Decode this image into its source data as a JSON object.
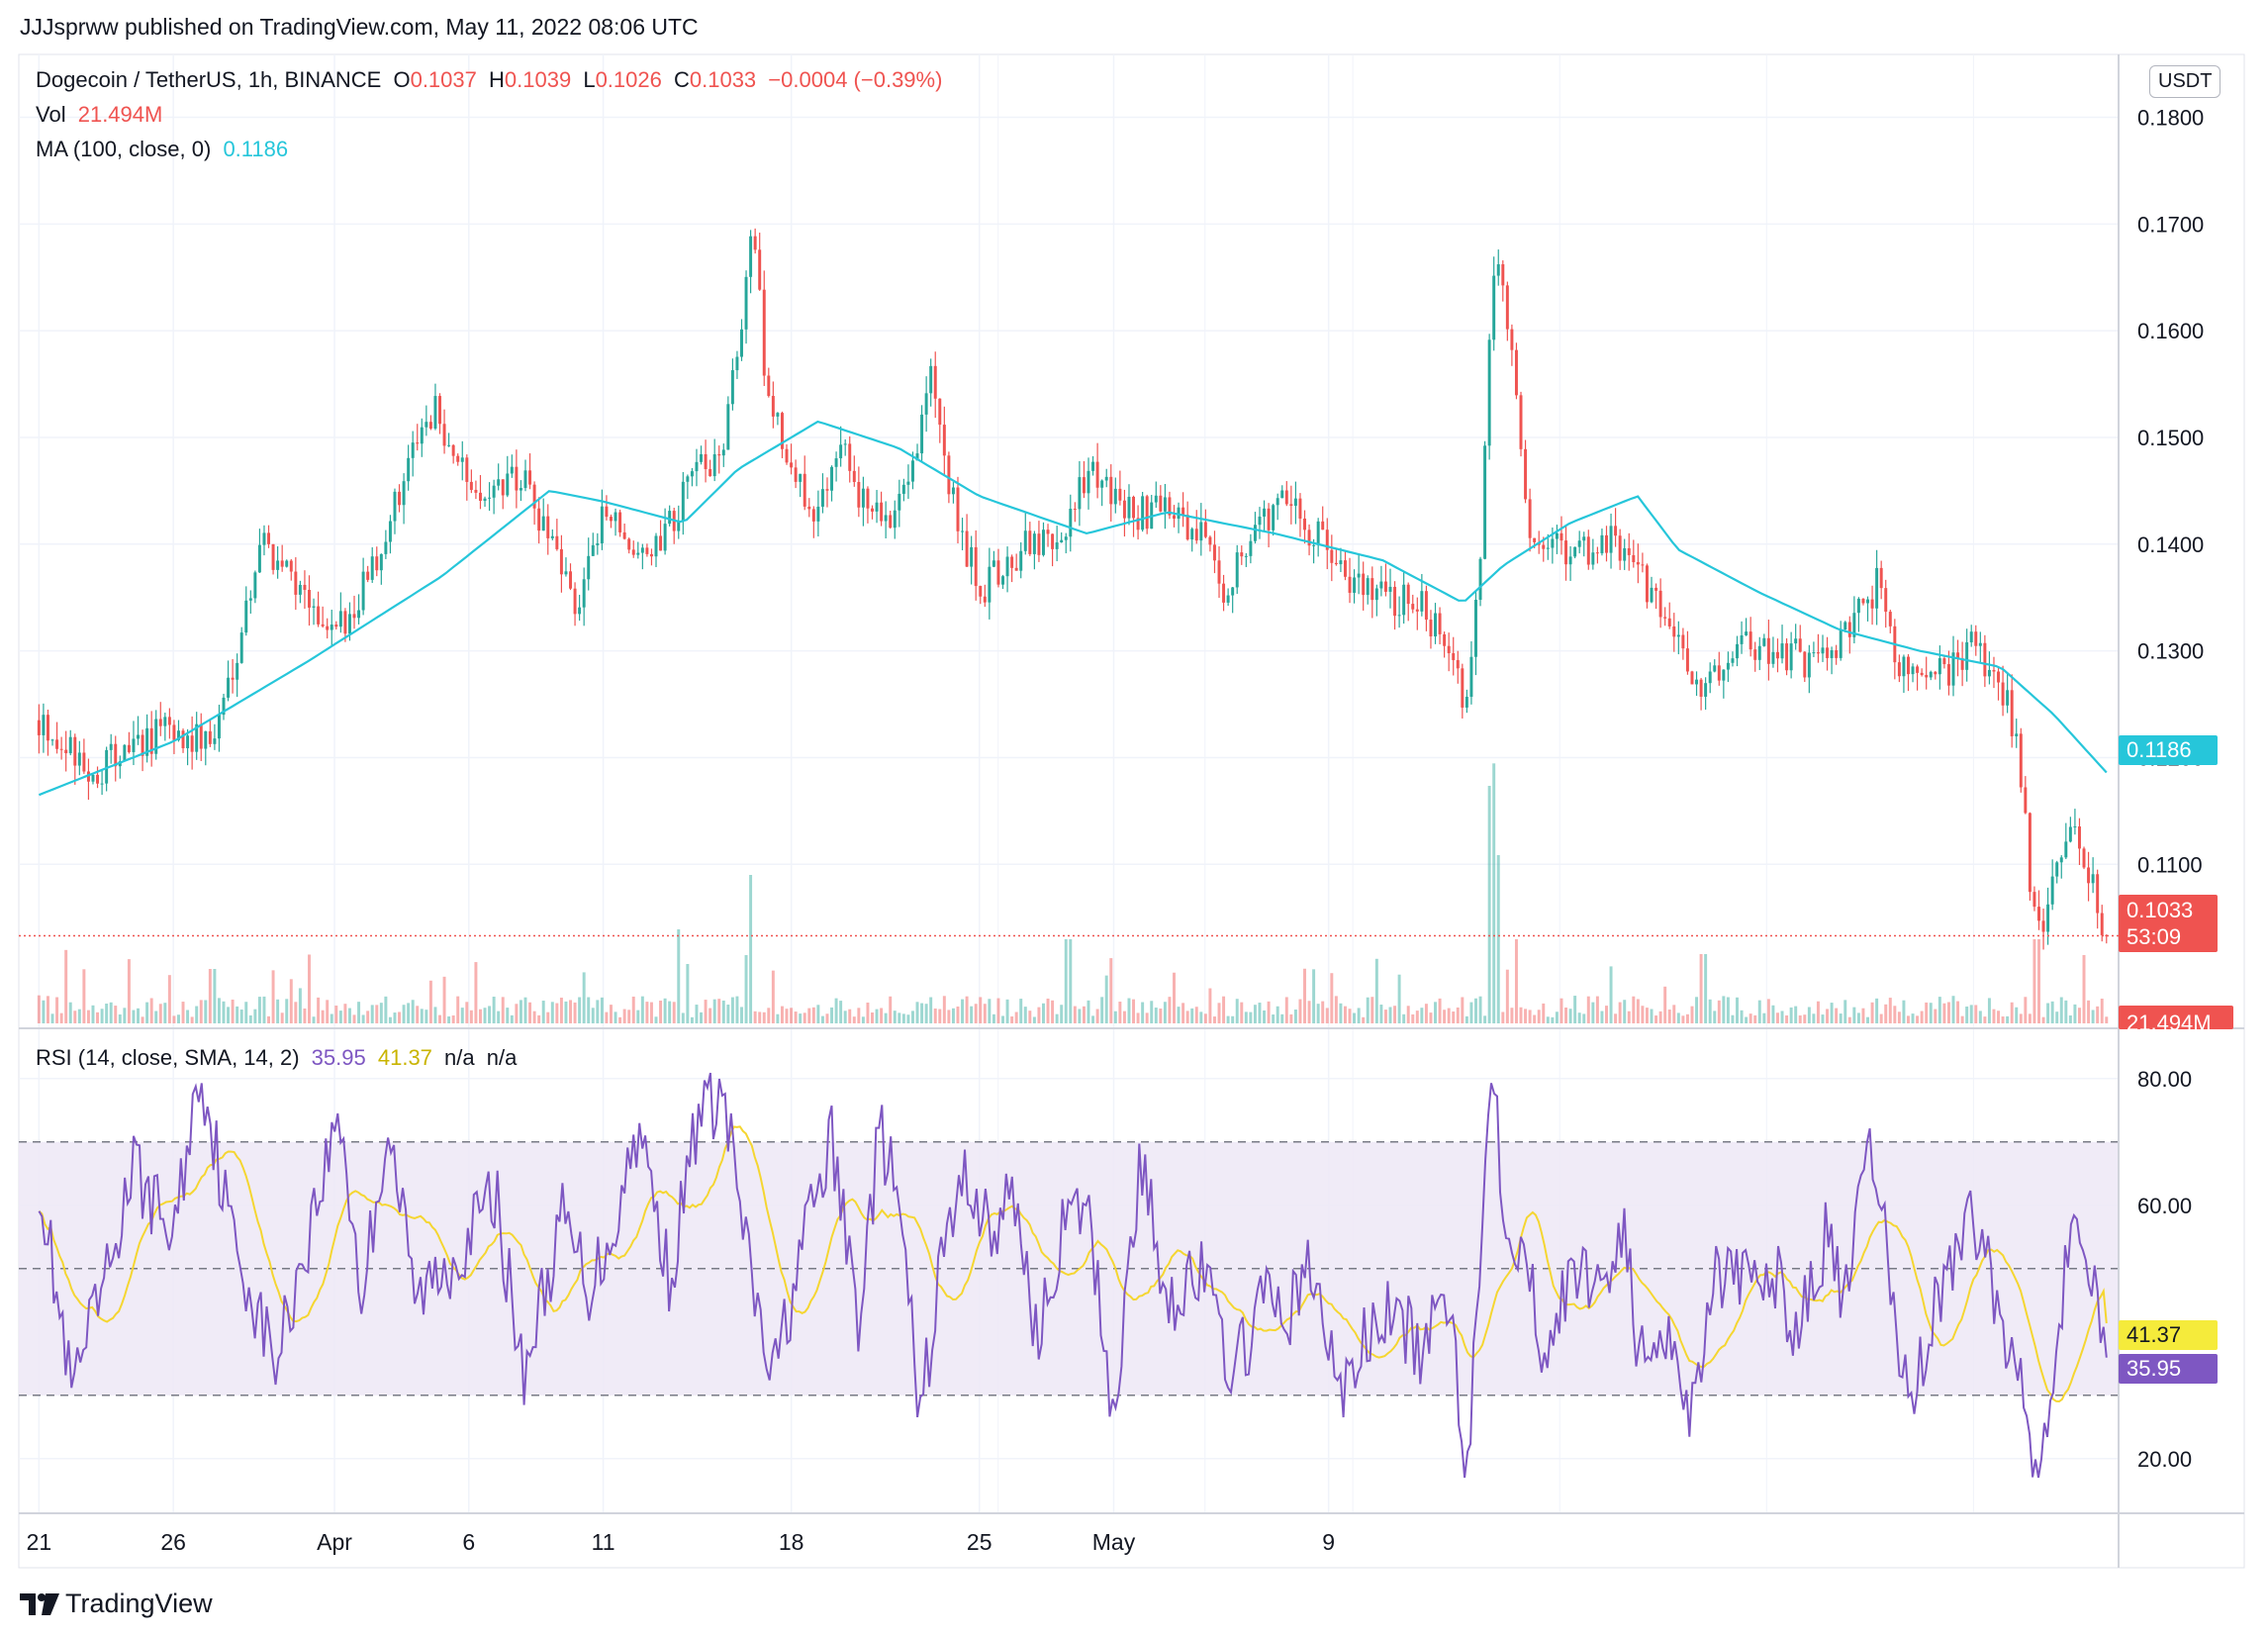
{
  "publisher": "JJJsprww published on TradingView.com, May 11, 2022 08:06 UTC",
  "legend": {
    "symbol": "Dogecoin / TetherUS, 1h, BINANCE",
    "o_label": "O",
    "o_val": "0.1037",
    "h_label": "H",
    "h_val": "0.1039",
    "l_label": "L",
    "l_val": "0.1026",
    "c_label": "C",
    "c_val": "0.1033",
    "change": "−0.0004 (−0.39%)",
    "vol_label": "Vol",
    "vol_val": "21.494M",
    "ma_label": "MA (100, close, 0)",
    "ma_val": "0.1186",
    "rsi_label": "RSI (14, close, SMA, 14, 2)",
    "rsi_val": "35.95",
    "rsi_ma_val": "41.37",
    "rsi_na1": "n/a",
    "rsi_na2": "n/a"
  },
  "currency_button": "USDT",
  "tags": {
    "ma": "0.1186",
    "price": "0.1033",
    "countdown": "53:09",
    "volume": "21.494M",
    "rsi_ma": "41.37",
    "rsi": "35.95"
  },
  "branding": "TradingView",
  "colors": {
    "up": "#26a69a",
    "down": "#ef5350",
    "ma": "#26c6da",
    "rsi": "#7e57c2",
    "rsi_ma": "#f5d631",
    "rsi_band": "#ede7f6",
    "grid": "#f0f3fa"
  },
  "chart_data": {
    "type": "candlestick",
    "symbol": "Dogecoin / TetherUS",
    "interval": "1h",
    "exchange": "BINANCE",
    "price_axis_ticks": [
      "0.1800",
      "0.1700",
      "0.1600",
      "0.1500",
      "0.1400",
      "0.1300",
      "0.1200",
      "0.1100"
    ],
    "price_ylim": [
      0.095,
      0.1845
    ],
    "x_ticks": [
      "21",
      "26",
      "Apr",
      "6",
      "11",
      "18",
      "25",
      "May",
      "9"
    ],
    "price_anchors": [
      {
        "d": 0,
        "p": 0.1235
      },
      {
        "d": 2,
        "p": 0.1185
      },
      {
        "d": 4.5,
        "p": 0.1225
      },
      {
        "d": 6.5,
        "p": 0.1215
      },
      {
        "d": 7.8,
        "p": 0.135
      },
      {
        "d": 8.2,
        "p": 0.1405
      },
      {
        "d": 9.5,
        "p": 0.137
      },
      {
        "d": 10.8,
        "p": 0.1305
      },
      {
        "d": 12.5,
        "p": 0.138
      },
      {
        "d": 13.5,
        "p": 0.146
      },
      {
        "d": 14.8,
        "p": 0.1525
      },
      {
        "d": 16,
        "p": 0.145
      },
      {
        "d": 18,
        "p": 0.146
      },
      {
        "d": 19.2,
        "p": 0.1385
      },
      {
        "d": 20,
        "p": 0.134
      },
      {
        "d": 21,
        "p": 0.143
      },
      {
        "d": 22.6,
        "p": 0.138
      },
      {
        "d": 24,
        "p": 0.1445
      },
      {
        "d": 25.5,
        "p": 0.15
      },
      {
        "d": 26.3,
        "p": 0.164
      },
      {
        "d": 26.6,
        "p": 0.17
      },
      {
        "d": 27,
        "p": 0.156
      },
      {
        "d": 28,
        "p": 0.146
      },
      {
        "d": 29,
        "p": 0.143
      },
      {
        "d": 29.8,
        "p": 0.151
      },
      {
        "d": 30.5,
        "p": 0.144
      },
      {
        "d": 31.5,
        "p": 0.142
      },
      {
        "d": 32.6,
        "p": 0.149
      },
      {
        "d": 33.2,
        "p": 0.156
      },
      {
        "d": 34.3,
        "p": 0.14
      },
      {
        "d": 35.2,
        "p": 0.136
      },
      {
        "d": 36.5,
        "p": 0.1395
      },
      {
        "d": 38,
        "p": 0.14
      },
      {
        "d": 39,
        "p": 0.147
      },
      {
        "d": 40.5,
        "p": 0.143
      },
      {
        "d": 42,
        "p": 0.143
      },
      {
        "d": 43.2,
        "p": 0.141
      },
      {
        "d": 44,
        "p": 0.1355
      },
      {
        "d": 45,
        "p": 0.1405
      },
      {
        "d": 46.3,
        "p": 0.144
      },
      {
        "d": 47.5,
        "p": 0.141
      },
      {
        "d": 48.8,
        "p": 0.137
      },
      {
        "d": 50,
        "p": 0.1355
      },
      {
        "d": 51.5,
        "p": 0.134
      },
      {
        "d": 52.5,
        "p": 0.131
      },
      {
        "d": 53.1,
        "p": 0.124
      },
      {
        "d": 53.4,
        "p": 0.13
      },
      {
        "d": 53.7,
        "p": 0.142
      },
      {
        "d": 54.1,
        "p": 0.166
      },
      {
        "d": 54.6,
        "p": 0.163
      },
      {
        "d": 55,
        "p": 0.153
      },
      {
        "d": 55.5,
        "p": 0.14
      },
      {
        "d": 57,
        "p": 0.139
      },
      {
        "d": 58.5,
        "p": 0.1405
      },
      {
        "d": 59.3,
        "p": 0.138
      },
      {
        "d": 60,
        "p": 0.135
      },
      {
        "d": 61,
        "p": 0.131
      },
      {
        "d": 61.9,
        "p": 0.125
      },
      {
        "d": 63,
        "p": 0.1305
      },
      {
        "d": 64.5,
        "p": 0.13
      },
      {
        "d": 66,
        "p": 0.129
      },
      {
        "d": 67.5,
        "p": 0.132
      },
      {
        "d": 68.5,
        "p": 0.137
      },
      {
        "d": 69,
        "p": 0.13
      },
      {
        "d": 70,
        "p": 0.127
      },
      {
        "d": 71,
        "p": 0.128
      },
      {
        "d": 72,
        "p": 0.1305
      },
      {
        "d": 73,
        "p": 0.127
      },
      {
        "d": 73.7,
        "p": 0.121
      },
      {
        "d": 74.1,
        "p": 0.108
      },
      {
        "d": 74.6,
        "p": 0.104
      },
      {
        "d": 75.2,
        "p": 0.111
      },
      {
        "d": 75.7,
        "p": 0.114
      },
      {
        "d": 76.4,
        "p": 0.108
      },
      {
        "d": 76.95,
        "p": 0.1033
      }
    ],
    "ma_anchors": [
      {
        "d": 0,
        "p": 0.1165
      },
      {
        "d": 5,
        "p": 0.1215
      },
      {
        "d": 10,
        "p": 0.129
      },
      {
        "d": 15,
        "p": 0.137
      },
      {
        "d": 19,
        "p": 0.145
      },
      {
        "d": 21,
        "p": 0.144
      },
      {
        "d": 24,
        "p": 0.142
      },
      {
        "d": 26,
        "p": 0.147
      },
      {
        "d": 29,
        "p": 0.1515
      },
      {
        "d": 32,
        "p": 0.149
      },
      {
        "d": 35,
        "p": 0.1445
      },
      {
        "d": 39,
        "p": 0.141
      },
      {
        "d": 42,
        "p": 0.143
      },
      {
        "d": 46,
        "p": 0.141
      },
      {
        "d": 50,
        "p": 0.1385
      },
      {
        "d": 53,
        "p": 0.1345
      },
      {
        "d": 54.5,
        "p": 0.138
      },
      {
        "d": 57,
        "p": 0.142
      },
      {
        "d": 59.5,
        "p": 0.1445
      },
      {
        "d": 61,
        "p": 0.1395
      },
      {
        "d": 64,
        "p": 0.1355
      },
      {
        "d": 67,
        "p": 0.132
      },
      {
        "d": 70,
        "p": 0.13
      },
      {
        "d": 73,
        "p": 0.1285
      },
      {
        "d": 75,
        "p": 0.124
      },
      {
        "d": 76.95,
        "p": 0.1186
      }
    ],
    "volume_spikes": [
      {
        "d": 26.5,
        "v": 150
      },
      {
        "d": 23.8,
        "v": 95
      },
      {
        "d": 38.3,
        "v": 85
      },
      {
        "d": 54.1,
        "v": 240
      },
      {
        "d": 54.3,
        "v": 170
      },
      {
        "d": 55,
        "v": 85
      },
      {
        "d": 61.9,
        "v": 70
      },
      {
        "d": 74.4,
        "v": 85
      },
      {
        "d": 6.5,
        "v": 55
      }
    ],
    "rsi_axis_ticks": [
      "80.00",
      "60.00",
      "20.00"
    ],
    "rsi_ylim": [
      12,
      87
    ],
    "rsi_bands": [
      70,
      50,
      30
    ],
    "rsi_anchors": [
      {
        "d": 0,
        "p": 65
      },
      {
        "d": 1.2,
        "p": 30
      },
      {
        "d": 2.5,
        "p": 48
      },
      {
        "d": 3.5,
        "p": 66
      },
      {
        "d": 5,
        "p": 55
      },
      {
        "d": 6,
        "p": 82
      },
      {
        "d": 7.2,
        "p": 55
      },
      {
        "d": 8.8,
        "p": 35
      },
      {
        "d": 10,
        "p": 55
      },
      {
        "d": 11.2,
        "p": 75
      },
      {
        "d": 12,
        "p": 45
      },
      {
        "d": 13,
        "p": 73
      },
      {
        "d": 14,
        "p": 45
      },
      {
        "d": 15.5,
        "p": 52
      },
      {
        "d": 17,
        "p": 62
      },
      {
        "d": 18,
        "p": 33
      },
      {
        "d": 19.5,
        "p": 58
      },
      {
        "d": 20.5,
        "p": 47
      },
      {
        "d": 21.5,
        "p": 58
      },
      {
        "d": 22.3,
        "p": 73
      },
      {
        "d": 23.5,
        "p": 48
      },
      {
        "d": 24.5,
        "p": 74
      },
      {
        "d": 25.5,
        "p": 77
      },
      {
        "d": 26.5,
        "p": 48
      },
      {
        "d": 27.3,
        "p": 32
      },
      {
        "d": 28.5,
        "p": 55
      },
      {
        "d": 29.5,
        "p": 70
      },
      {
        "d": 30.5,
        "p": 42
      },
      {
        "d": 31.3,
        "p": 72
      },
      {
        "d": 32,
        "p": 60
      },
      {
        "d": 32.8,
        "p": 26
      },
      {
        "d": 33.6,
        "p": 52
      },
      {
        "d": 34.5,
        "p": 65
      },
      {
        "d": 35.5,
        "p": 55
      },
      {
        "d": 36.3,
        "p": 62
      },
      {
        "d": 37.2,
        "p": 38
      },
      {
        "d": 38,
        "p": 55
      },
      {
        "d": 39,
        "p": 60
      },
      {
        "d": 40,
        "p": 27
      },
      {
        "d": 41,
        "p": 67
      },
      {
        "d": 42,
        "p": 45
      },
      {
        "d": 43.2,
        "p": 50
      },
      {
        "d": 44.5,
        "p": 33
      },
      {
        "d": 45.5,
        "p": 45
      },
      {
        "d": 46.5,
        "p": 43
      },
      {
        "d": 47.3,
        "p": 50
      },
      {
        "d": 48.5,
        "p": 30
      },
      {
        "d": 49.5,
        "p": 40
      },
      {
        "d": 50.5,
        "p": 43
      },
      {
        "d": 51.5,
        "p": 36
      },
      {
        "d": 52.5,
        "p": 47
      },
      {
        "d": 53.1,
        "p": 18
      },
      {
        "d": 53.5,
        "p": 40
      },
      {
        "d": 54.1,
        "p": 87
      },
      {
        "d": 54.5,
        "p": 60
      },
      {
        "d": 55.2,
        "p": 53
      },
      {
        "d": 56,
        "p": 38
      },
      {
        "d": 57.3,
        "p": 50
      },
      {
        "d": 58.3,
        "p": 48
      },
      {
        "d": 59,
        "p": 58
      },
      {
        "d": 59.5,
        "p": 35
      },
      {
        "d": 60.5,
        "p": 42
      },
      {
        "d": 61.5,
        "p": 27
      },
      {
        "d": 62.3,
        "p": 50
      },
      {
        "d": 63.5,
        "p": 47
      },
      {
        "d": 64.5,
        "p": 50
      },
      {
        "d": 65.5,
        "p": 40
      },
      {
        "d": 66.5,
        "p": 55
      },
      {
        "d": 67.2,
        "p": 44
      },
      {
        "d": 68.2,
        "p": 70
      },
      {
        "d": 69,
        "p": 45
      },
      {
        "d": 69.6,
        "p": 28
      },
      {
        "d": 70.5,
        "p": 43
      },
      {
        "d": 71.5,
        "p": 55
      },
      {
        "d": 72.3,
        "p": 58
      },
      {
        "d": 73,
        "p": 40
      },
      {
        "d": 73.8,
        "p": 33
      },
      {
        "d": 74.4,
        "p": 18
      },
      {
        "d": 75.3,
        "p": 45
      },
      {
        "d": 75.7,
        "p": 60
      },
      {
        "d": 76.3,
        "p": 50
      },
      {
        "d": 76.95,
        "p": 35.95
      }
    ]
  }
}
